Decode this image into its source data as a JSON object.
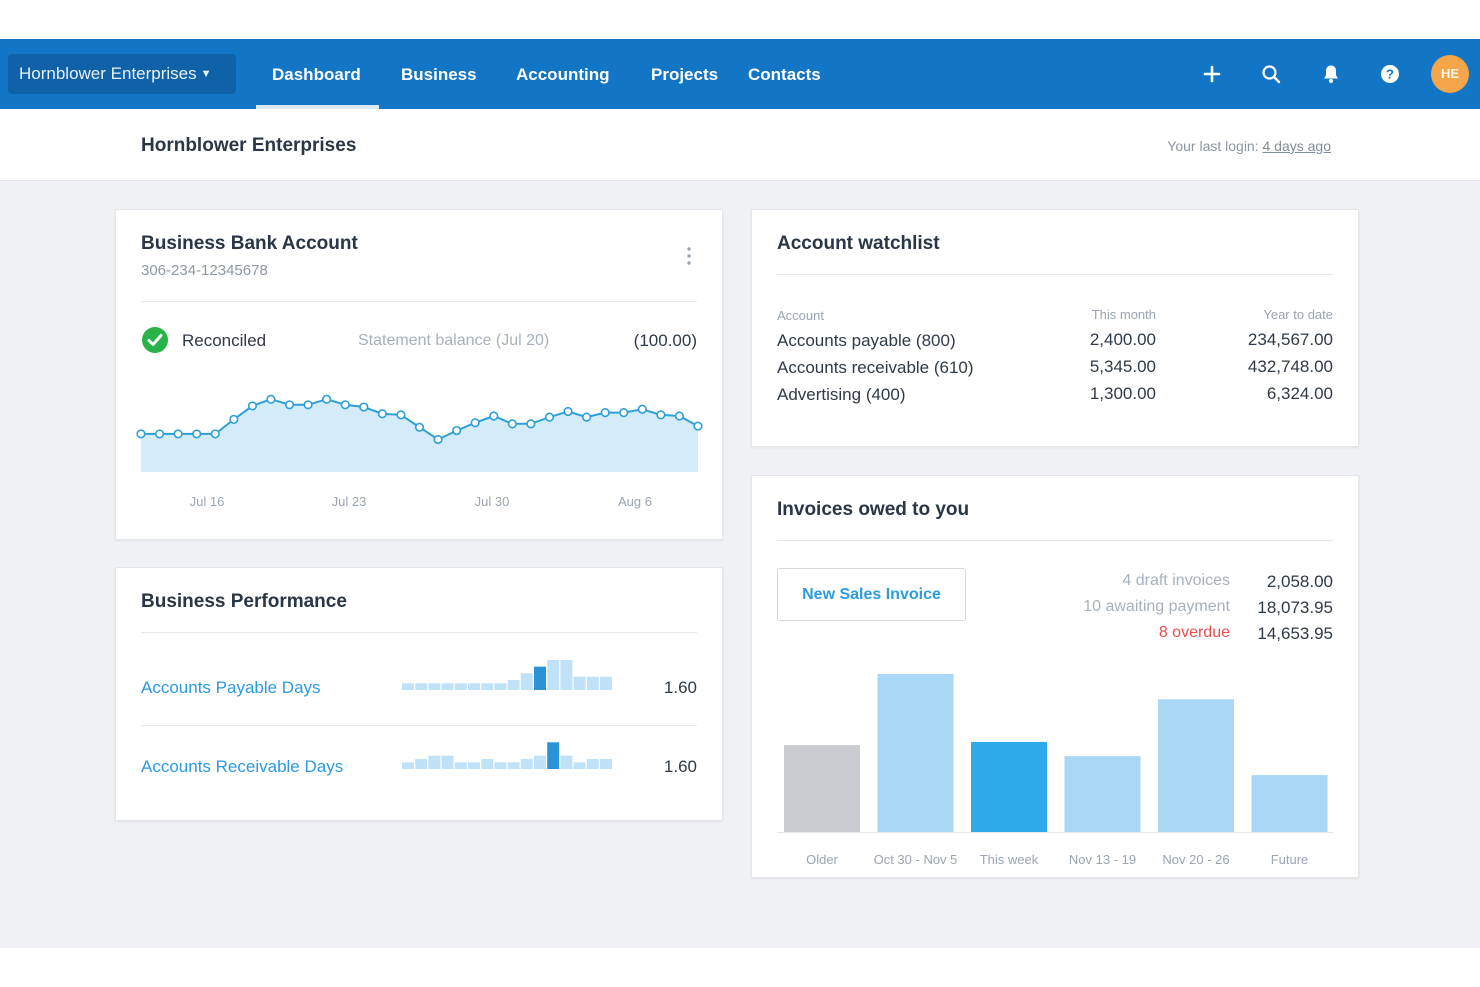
{
  "topbar": {
    "org_name": "Hornblower Enterprises",
    "nav": [
      {
        "label": "Dashboard",
        "active": true
      },
      {
        "label": "Business",
        "active": false
      },
      {
        "label": "Accounting",
        "active": false
      },
      {
        "label": "Projects",
        "active": false
      },
      {
        "label": "Contacts",
        "active": false
      }
    ],
    "icons": [
      "plus-icon",
      "search-icon",
      "bell-icon",
      "help-icon"
    ],
    "avatar_initials": "HE"
  },
  "subheader": {
    "title": "Hornblower Enterprises",
    "last_login_label": "Your last login:",
    "last_login_value": "4 days ago"
  },
  "bank_account": {
    "title": "Business Bank Account",
    "account_number": "306-234-12345678",
    "status": "Reconciled",
    "statement_label": "Statement balance (Jul 20)",
    "statement_value": "(100.00)",
    "chart_data": {
      "type": "area",
      "x_tick_labels": [
        "Jul 16",
        "Jul 23",
        "Jul 30",
        "Aug 6"
      ],
      "values": [
        34,
        34,
        34,
        34,
        34,
        47,
        59,
        65,
        60,
        60,
        65,
        60,
        58,
        52,
        51,
        40,
        29,
        37,
        44,
        50,
        43,
        43,
        49,
        54,
        49,
        53,
        53,
        56,
        51,
        50,
        41
      ],
      "ylim": [
        0,
        100
      ],
      "colors": {
        "line": "#2e9fd8",
        "fill": "#d4ebfa"
      }
    }
  },
  "performance": {
    "title": "Business Performance",
    "rows": [
      {
        "label": "Accounts Payable Days",
        "value": "1.60",
        "spark": [
          2,
          2,
          2,
          2,
          2,
          2,
          2,
          2,
          3,
          5,
          7,
          9,
          9,
          4,
          4,
          4
        ],
        "highlight": 10
      },
      {
        "label": "Accounts Receivable Days",
        "value": "1.60",
        "spark": [
          2,
          3,
          4,
          4,
          2,
          2,
          3,
          2,
          2,
          3,
          4,
          8,
          4,
          2,
          3,
          3
        ],
        "highlight": 11
      }
    ]
  },
  "watchlist": {
    "title": "Account watchlist",
    "headers": [
      "Account",
      "This month",
      "Year to date"
    ],
    "rows": [
      [
        "Accounts payable (800)",
        "2,400.00",
        "234,567.00"
      ],
      [
        "Accounts receivable (610)",
        "5,345.00",
        "432,748.00"
      ],
      [
        "Advertising (400)",
        "1,300.00",
        "6,324.00"
      ]
    ]
  },
  "invoices": {
    "title": "Invoices owed to you",
    "new_invoice_label": "New Sales Invoice",
    "summary": [
      {
        "label": "4 draft invoices",
        "value": "2,058.00",
        "alert": false
      },
      {
        "label": "10 awaiting payment",
        "value": "18,073.95",
        "alert": false
      },
      {
        "label": "8 overdue",
        "value": "14,653.95",
        "alert": true
      }
    ],
    "chart_data": {
      "type": "bar",
      "categories": [
        "Older",
        "Oct 30 - Nov 5",
        "This week",
        "Nov 13 - 19",
        "Nov 20 - 26",
        "Future"
      ],
      "values": [
        55,
        100,
        57,
        48,
        84,
        36
      ],
      "ylim": [
        0,
        100
      ],
      "colors": [
        "#c8ccd1",
        "#a8d8f5",
        "#2eaae8",
        "#a8d8f5",
        "#a8d8f5",
        "#a8d8f5"
      ]
    }
  },
  "colors": {
    "brand_blue": "#1275c6",
    "link_blue": "#2b9be0",
    "reconciled_green": "#27b34a",
    "overdue_red": "#ef4d4d",
    "avatar_orange": "#f7a54a"
  }
}
